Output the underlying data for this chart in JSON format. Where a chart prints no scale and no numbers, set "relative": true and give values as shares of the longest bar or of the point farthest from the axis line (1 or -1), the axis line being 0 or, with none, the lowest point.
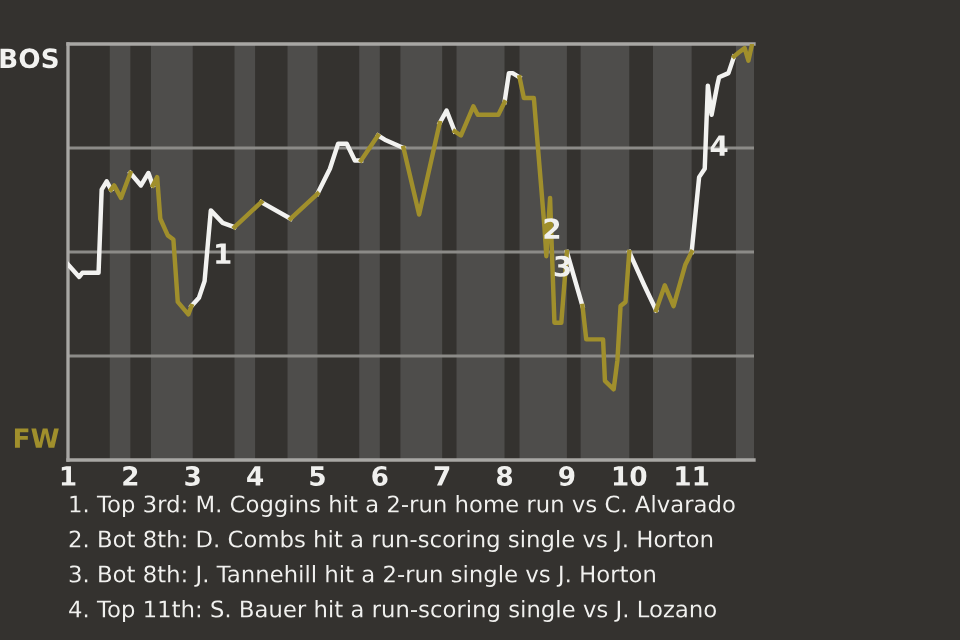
{
  "chart_data": {
    "type": "line",
    "relative": true,
    "series": [
      {
        "name": "BOS",
        "color": "#f2f2f0",
        "x": [
          1.0,
          1.18,
          1.23,
          1.49,
          1.54,
          1.62,
          1.69,
          null,
          2.0,
          2.17,
          2.29,
          2.36,
          null,
          2.98,
          3.1,
          3.19,
          3.29,
          3.48,
          3.67,
          null,
          4.1,
          4.57,
          null,
          5.0,
          5.2,
          5.33,
          5.47,
          5.6,
          5.7,
          null,
          5.97,
          6.08,
          6.38,
          null,
          6.96,
          7.07,
          7.2,
          null,
          8.0,
          8.07,
          8.13,
          8.24,
          null,
          9.0,
          9.25,
          null,
          10.0,
          10.24,
          10.43,
          null,
          11.0,
          11.12,
          11.21,
          11.26,
          11.32,
          11.41,
          11.44,
          11.59,
          11.68
        ],
        "values": [
          0.47,
          0.44,
          0.45,
          0.45,
          0.65,
          0.67,
          0.65,
          null,
          0.69,
          0.66,
          0.69,
          0.66,
          null,
          0.37,
          0.39,
          0.43,
          0.6,
          0.57,
          0.56,
          null,
          0.62,
          0.58,
          null,
          0.64,
          0.7,
          0.76,
          0.76,
          0.72,
          0.72,
          null,
          0.78,
          0.77,
          0.75,
          null,
          0.81,
          0.84,
          0.79,
          null,
          0.86,
          0.93,
          0.93,
          0.92,
          null,
          0.5,
          0.37,
          null,
          0.5,
          0.42,
          0.36,
          null,
          0.5,
          0.68,
          0.7,
          0.9,
          0.83,
          0.9,
          0.92,
          0.93,
          0.97
        ]
      },
      {
        "name": "FW",
        "color": "#a08f2c",
        "x": [
          1.69,
          1.74,
          1.85,
          2.0,
          null,
          2.36,
          2.43,
          2.48,
          2.6,
          2.69,
          2.76,
          2.93,
          2.98,
          null,
          3.67,
          4.1,
          null,
          4.57,
          5.0,
          null,
          5.7,
          5.97,
          null,
          6.38,
          6.63,
          6.96,
          null,
          7.2,
          7.3,
          7.5,
          7.57,
          7.9,
          8.0,
          null,
          8.24,
          8.31,
          8.47,
          8.58,
          8.64,
          8.67,
          8.73,
          8.76,
          8.8,
          8.91,
          9.0,
          null,
          9.25,
          9.31,
          9.58,
          9.61,
          9.75,
          9.81,
          9.86,
          9.94,
          10.0,
          null,
          10.43,
          10.57,
          10.71,
          10.9,
          11.0,
          null,
          11.68,
          11.76,
          11.85,
          11.91,
          11.97
        ],
        "values": [
          0.65,
          0.66,
          0.63,
          0.69,
          null,
          0.66,
          0.68,
          0.58,
          0.54,
          0.53,
          0.38,
          0.35,
          0.37,
          null,
          0.56,
          0.62,
          null,
          0.58,
          0.64,
          null,
          0.72,
          0.78,
          null,
          0.75,
          0.59,
          0.81,
          null,
          0.79,
          0.78,
          0.85,
          0.83,
          0.83,
          0.86,
          null,
          0.92,
          0.87,
          0.87,
          0.67,
          0.56,
          0.49,
          0.63,
          0.5,
          0.33,
          0.33,
          0.5,
          null,
          0.37,
          0.29,
          0.29,
          0.19,
          0.17,
          0.24,
          0.37,
          0.38,
          0.5,
          null,
          0.36,
          0.42,
          0.37,
          0.47,
          0.5,
          null,
          0.97,
          0.98,
          0.99,
          0.96,
          1.0
        ]
      }
    ],
    "xlim": [
      1,
      12
    ],
    "xticks": [
      1,
      2,
      3,
      4,
      5,
      6,
      7,
      8,
      9,
      10,
      11
    ],
    "ref_lines": [
      {
        "axis": "y",
        "value": 0.25,
        "color": "#8c8b88"
      },
      {
        "axis": "y",
        "value": 0.5,
        "color": "#8c8b88"
      },
      {
        "axis": "y",
        "value": 0.75,
        "color": "#8c8b88"
      }
    ],
    "bands": [
      {
        "axis": "x",
        "from": 1.67,
        "to": 2,
        "color": "#4e4d4b"
      },
      {
        "axis": "x",
        "from": 2.33,
        "to": 3,
        "color": "#4e4d4b"
      },
      {
        "axis": "x",
        "from": 3.67,
        "to": 4,
        "color": "#4e4d4b"
      },
      {
        "axis": "x",
        "from": 4.52,
        "to": 5,
        "color": "#4e4d4b"
      },
      {
        "axis": "x",
        "from": 5.67,
        "to": 6,
        "color": "#4e4d4b"
      },
      {
        "axis": "x",
        "from": 6.33,
        "to": 7,
        "color": "#4e4d4b"
      },
      {
        "axis": "x",
        "from": 7.23,
        "to": 8,
        "color": "#4e4d4b"
      },
      {
        "axis": "x",
        "from": 8.24,
        "to": 9,
        "color": "#4e4d4b"
      },
      {
        "axis": "x",
        "from": 9.22,
        "to": 10,
        "color": "#4e4d4b"
      },
      {
        "axis": "x",
        "from": 10.38,
        "to": 11,
        "color": "#4e4d4b"
      },
      {
        "axis": "x",
        "from": 11.71,
        "to": 12,
        "color": "#4e4d4b"
      }
    ],
    "annotations": [
      {
        "text": "1",
        "x": 3.48,
        "y": 0.49
      },
      {
        "text": "2",
        "x": 8.76,
        "y": 0.55
      },
      {
        "text": "3",
        "x": 8.93,
        "y": 0.46
      },
      {
        "text": "4",
        "x": 11.44,
        "y": 0.75
      },
      "1. Top 3rd: M. Coggins hit a 2-run home run vs C. Alvarado",
      "2. Bot 8th: D. Combs hit a run-scoring single vs J. Horton",
      "3. Bot 8th: J. Tannehill hit a 2-run single vs J. Horton",
      "4. Top 11th: S. Bauer hit a run-scoring single vs J. Lozano"
    ],
    "grid": false,
    "legend": false,
    "marker": "none",
    "line_style": "solid"
  }
}
